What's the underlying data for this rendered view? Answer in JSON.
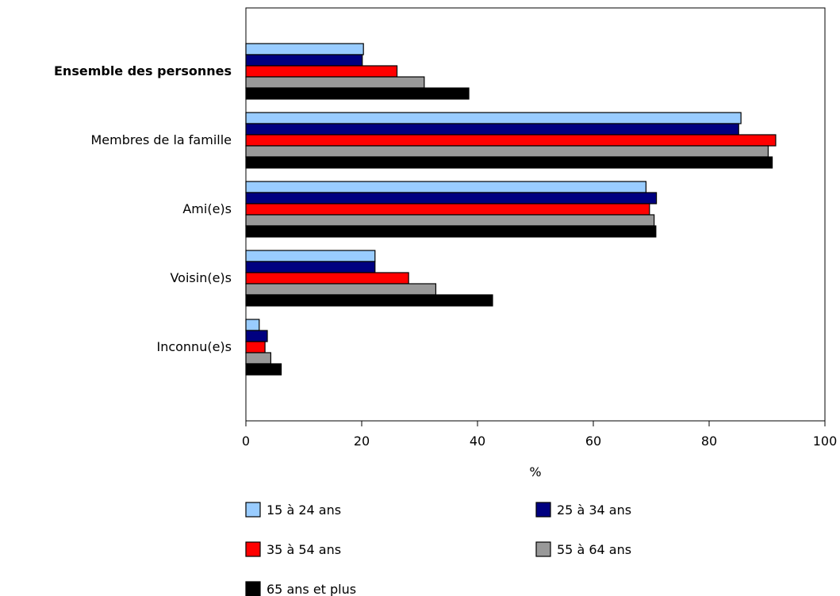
{
  "chart_data": {
    "type": "bar",
    "orientation": "horizontal",
    "categories": [
      "Ensemble des personnes",
      "Membres de la famille",
      "Ami(e)s",
      "Voisin(e)s",
      "Inconnu(e)s"
    ],
    "emphasized_category": "Ensemble des personnes",
    "series": [
      {
        "name": "15 à 24 ans",
        "color": "#99ccff",
        "values": [
          20.3,
          85.5,
          69.1,
          22.3,
          2.3
        ]
      },
      {
        "name": "25 à 34 ans",
        "color": "#000080",
        "values": [
          20.1,
          85.1,
          70.9,
          22.3,
          3.7
        ]
      },
      {
        "name": "35 à 54 ans",
        "color": "#ff0000",
        "values": [
          26.1,
          91.5,
          69.7,
          28.1,
          3.3
        ]
      },
      {
        "name": "55 à 64 ans",
        "color": "#999999",
        "values": [
          30.8,
          90.2,
          70.5,
          32.8,
          4.3
        ]
      },
      {
        "name": "65 ans et plus",
        "color": "#000000",
        "values": [
          38.5,
          90.9,
          70.8,
          42.6,
          6.1
        ]
      }
    ],
    "x_ticks": [
      "0",
      "20",
      "40",
      "60",
      "80",
      "100"
    ],
    "xlim": [
      0,
      100
    ],
    "xlabel": "%",
    "ylabel": "",
    "grid": false,
    "legend_position": "bottom"
  }
}
